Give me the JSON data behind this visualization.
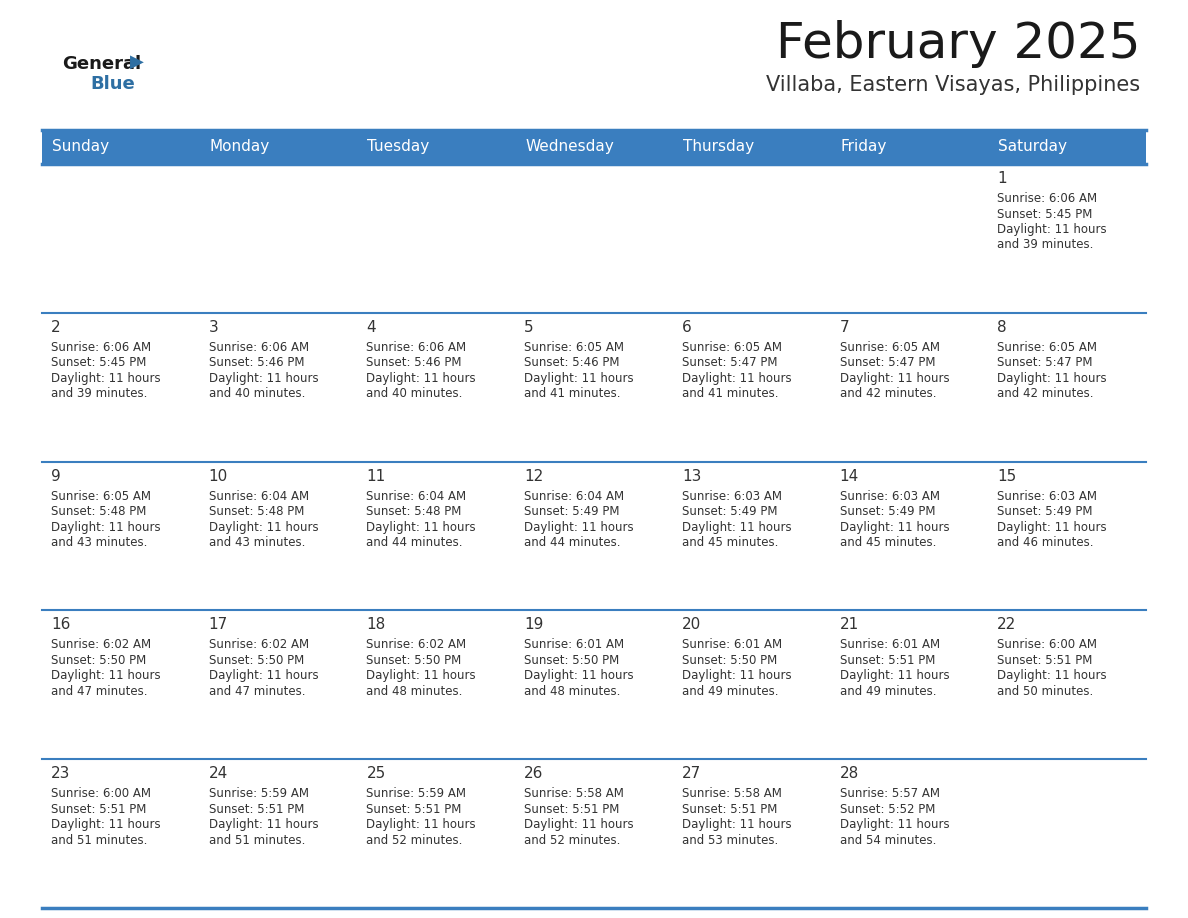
{
  "title": "February 2025",
  "subtitle": "Villaba, Eastern Visayas, Philippines",
  "header_color": "#3a7ebf",
  "header_text_color": "#ffffff",
  "cell_bg_color": "#ffffff",
  "border_color": "#3a7ebf",
  "day_number_color": "#333333",
  "cell_text_color": "#333333",
  "days_of_week": [
    "Sunday",
    "Monday",
    "Tuesday",
    "Wednesday",
    "Thursday",
    "Friday",
    "Saturday"
  ],
  "calendar_data": [
    [
      {
        "day": null,
        "sunrise": null,
        "sunset": null,
        "daylight": null
      },
      {
        "day": null,
        "sunrise": null,
        "sunset": null,
        "daylight": null
      },
      {
        "day": null,
        "sunrise": null,
        "sunset": null,
        "daylight": null
      },
      {
        "day": null,
        "sunrise": null,
        "sunset": null,
        "daylight": null
      },
      {
        "day": null,
        "sunrise": null,
        "sunset": null,
        "daylight": null
      },
      {
        "day": null,
        "sunrise": null,
        "sunset": null,
        "daylight": null
      },
      {
        "day": 1,
        "sunrise": "6:06 AM",
        "sunset": "5:45 PM",
        "daylight": "11 hours and 39 minutes."
      }
    ],
    [
      {
        "day": 2,
        "sunrise": "6:06 AM",
        "sunset": "5:45 PM",
        "daylight": "11 hours and 39 minutes."
      },
      {
        "day": 3,
        "sunrise": "6:06 AM",
        "sunset": "5:46 PM",
        "daylight": "11 hours and 40 minutes."
      },
      {
        "day": 4,
        "sunrise": "6:06 AM",
        "sunset": "5:46 PM",
        "daylight": "11 hours and 40 minutes."
      },
      {
        "day": 5,
        "sunrise": "6:05 AM",
        "sunset": "5:46 PM",
        "daylight": "11 hours and 41 minutes."
      },
      {
        "day": 6,
        "sunrise": "6:05 AM",
        "sunset": "5:47 PM",
        "daylight": "11 hours and 41 minutes."
      },
      {
        "day": 7,
        "sunrise": "6:05 AM",
        "sunset": "5:47 PM",
        "daylight": "11 hours and 42 minutes."
      },
      {
        "day": 8,
        "sunrise": "6:05 AM",
        "sunset": "5:47 PM",
        "daylight": "11 hours and 42 minutes."
      }
    ],
    [
      {
        "day": 9,
        "sunrise": "6:05 AM",
        "sunset": "5:48 PM",
        "daylight": "11 hours and 43 minutes."
      },
      {
        "day": 10,
        "sunrise": "6:04 AM",
        "sunset": "5:48 PM",
        "daylight": "11 hours and 43 minutes."
      },
      {
        "day": 11,
        "sunrise": "6:04 AM",
        "sunset": "5:48 PM",
        "daylight": "11 hours and 44 minutes."
      },
      {
        "day": 12,
        "sunrise": "6:04 AM",
        "sunset": "5:49 PM",
        "daylight": "11 hours and 44 minutes."
      },
      {
        "day": 13,
        "sunrise": "6:03 AM",
        "sunset": "5:49 PM",
        "daylight": "11 hours and 45 minutes."
      },
      {
        "day": 14,
        "sunrise": "6:03 AM",
        "sunset": "5:49 PM",
        "daylight": "11 hours and 45 minutes."
      },
      {
        "day": 15,
        "sunrise": "6:03 AM",
        "sunset": "5:49 PM",
        "daylight": "11 hours and 46 minutes."
      }
    ],
    [
      {
        "day": 16,
        "sunrise": "6:02 AM",
        "sunset": "5:50 PM",
        "daylight": "11 hours and 47 minutes."
      },
      {
        "day": 17,
        "sunrise": "6:02 AM",
        "sunset": "5:50 PM",
        "daylight": "11 hours and 47 minutes."
      },
      {
        "day": 18,
        "sunrise": "6:02 AM",
        "sunset": "5:50 PM",
        "daylight": "11 hours and 48 minutes."
      },
      {
        "day": 19,
        "sunrise": "6:01 AM",
        "sunset": "5:50 PM",
        "daylight": "11 hours and 48 minutes."
      },
      {
        "day": 20,
        "sunrise": "6:01 AM",
        "sunset": "5:50 PM",
        "daylight": "11 hours and 49 minutes."
      },
      {
        "day": 21,
        "sunrise": "6:01 AM",
        "sunset": "5:51 PM",
        "daylight": "11 hours and 49 minutes."
      },
      {
        "day": 22,
        "sunrise": "6:00 AM",
        "sunset": "5:51 PM",
        "daylight": "11 hours and 50 minutes."
      }
    ],
    [
      {
        "day": 23,
        "sunrise": "6:00 AM",
        "sunset": "5:51 PM",
        "daylight": "11 hours and 51 minutes."
      },
      {
        "day": 24,
        "sunrise": "5:59 AM",
        "sunset": "5:51 PM",
        "daylight": "11 hours and 51 minutes."
      },
      {
        "day": 25,
        "sunrise": "5:59 AM",
        "sunset": "5:51 PM",
        "daylight": "11 hours and 52 minutes."
      },
      {
        "day": 26,
        "sunrise": "5:58 AM",
        "sunset": "5:51 PM",
        "daylight": "11 hours and 52 minutes."
      },
      {
        "day": 27,
        "sunrise": "5:58 AM",
        "sunset": "5:51 PM",
        "daylight": "11 hours and 53 minutes."
      },
      {
        "day": 28,
        "sunrise": "5:57 AM",
        "sunset": "5:52 PM",
        "daylight": "11 hours and 54 minutes."
      },
      {
        "day": null,
        "sunrise": null,
        "sunset": null,
        "daylight": null
      }
    ]
  ]
}
